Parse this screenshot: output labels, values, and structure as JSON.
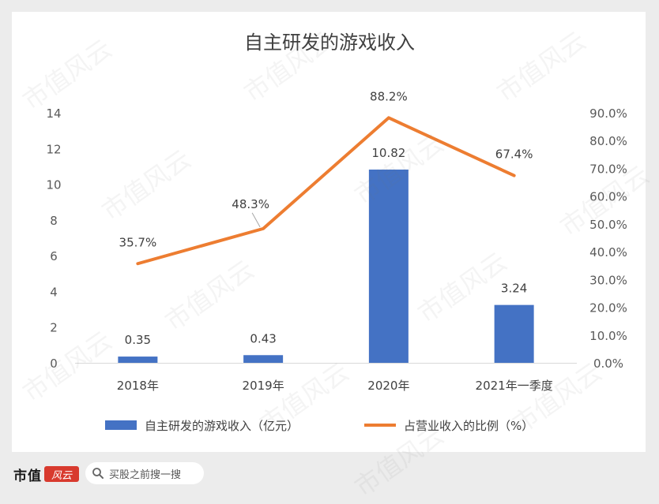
{
  "chart_data": {
    "type": "bar+line",
    "title": "自主研发的游戏收入",
    "categories": [
      "2018年",
      "2019年",
      "2020年",
      "2021年一季度"
    ],
    "series": [
      {
        "name": "自主研发的游戏收入（亿元）",
        "type": "bar",
        "axis": "left",
        "values": [
          0.35,
          0.43,
          10.82,
          3.24
        ],
        "labels": [
          "0.35",
          "0.43",
          "10.82",
          "3.24"
        ],
        "color": "#4472c4"
      },
      {
        "name": "占营业收入的比例（%）",
        "type": "line",
        "axis": "right",
        "values": [
          35.7,
          48.3,
          88.2,
          67.4
        ],
        "labels": [
          "35.7%",
          "48.3%",
          "88.2%",
          "67.4%"
        ],
        "color": "#ed7d31"
      }
    ],
    "y_left": {
      "ylim": [
        0,
        14
      ],
      "ticks": [
        "0",
        "2",
        "4",
        "6",
        "8",
        "10",
        "12",
        "14"
      ]
    },
    "y_right": {
      "ylim": [
        0,
        90
      ],
      "ticks": [
        "0.0%",
        "10.0%",
        "20.0%",
        "30.0%",
        "40.0%",
        "50.0%",
        "60.0%",
        "70.0%",
        "80.0%",
        "90.0%"
      ]
    },
    "legend": "bottom",
    "grid": false
  },
  "footer": {
    "logo_text": "市值",
    "logo_mark": "风云",
    "search_placeholder": "买股之前搜一搜"
  },
  "watermark_text": "市值风云",
  "colors": {
    "background": "#ececec",
    "card": "#ffffff",
    "bar": "#4472c4",
    "line": "#ed7d31"
  },
  "icons": {
    "search": "search-icon"
  }
}
